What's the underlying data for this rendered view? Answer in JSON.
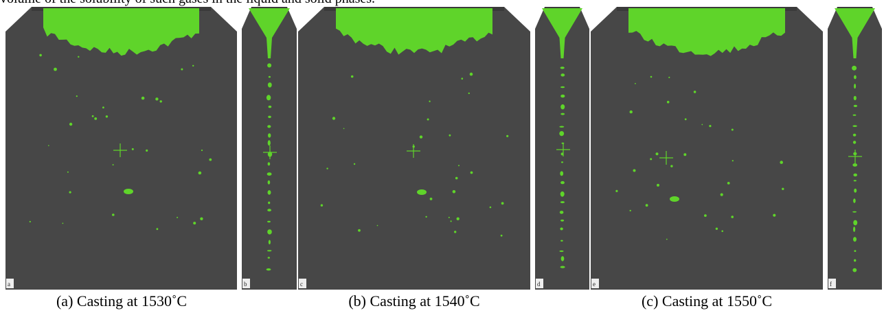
{
  "body_text": "volume of the solubility of such gases in the liquid and solid phases.",
  "panels": [
    {
      "label": "a"
    },
    {
      "label": "b"
    },
    {
      "label": "c"
    },
    {
      "label": "d"
    },
    {
      "label": "e"
    },
    {
      "label": "f"
    }
  ],
  "captions": [
    "(a) Casting at 1530˚C",
    "(b) Casting at 1540˚C",
    "(c) Casting at 1550˚C"
  ]
}
